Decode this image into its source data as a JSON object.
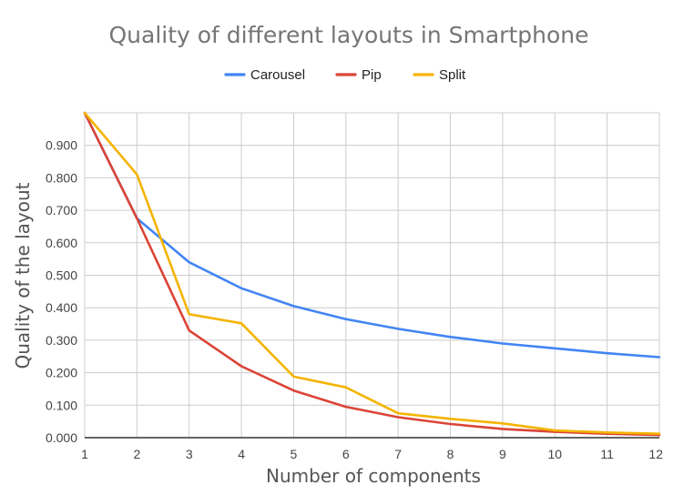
{
  "chart_data": {
    "type": "line",
    "title": "Quality of different layouts in Smartphone",
    "xlabel": "Number of components",
    "ylabel": "Quality of the layout",
    "x": [
      1,
      2,
      3,
      4,
      5,
      6,
      7,
      8,
      9,
      10,
      11,
      12
    ],
    "xticks": [
      "1",
      "2",
      "3",
      "4",
      "5",
      "6",
      "7",
      "8",
      "9",
      "10",
      "11",
      "12"
    ],
    "ylim": [
      0,
      1.0
    ],
    "yticks": [
      "0.000",
      "0.100",
      "0.200",
      "0.300",
      "0.400",
      "0.500",
      "0.600",
      "0.700",
      "0.800",
      "0.900"
    ],
    "ytick_values": [
      0,
      0.1,
      0.2,
      0.3,
      0.4,
      0.5,
      0.6,
      0.7,
      0.8,
      0.9
    ],
    "grid": true,
    "legend_position": "top-center",
    "series": [
      {
        "name": "Carousel",
        "color": "#4285f4",
        "values": [
          1.0,
          0.675,
          0.54,
          0.46,
          0.405,
          0.365,
          0.335,
          0.31,
          0.29,
          0.275,
          0.26,
          0.248
        ]
      },
      {
        "name": "Pip",
        "color": "#db4437",
        "values": [
          1.0,
          0.675,
          0.33,
          0.22,
          0.145,
          0.095,
          0.063,
          0.042,
          0.027,
          0.018,
          0.012,
          0.008
        ]
      },
      {
        "name": "Split",
        "color": "#f4b400",
        "values": [
          1.0,
          0.81,
          0.38,
          0.352,
          0.188,
          0.155,
          0.075,
          0.058,
          0.044,
          0.022,
          0.016,
          0.012
        ]
      }
    ]
  }
}
